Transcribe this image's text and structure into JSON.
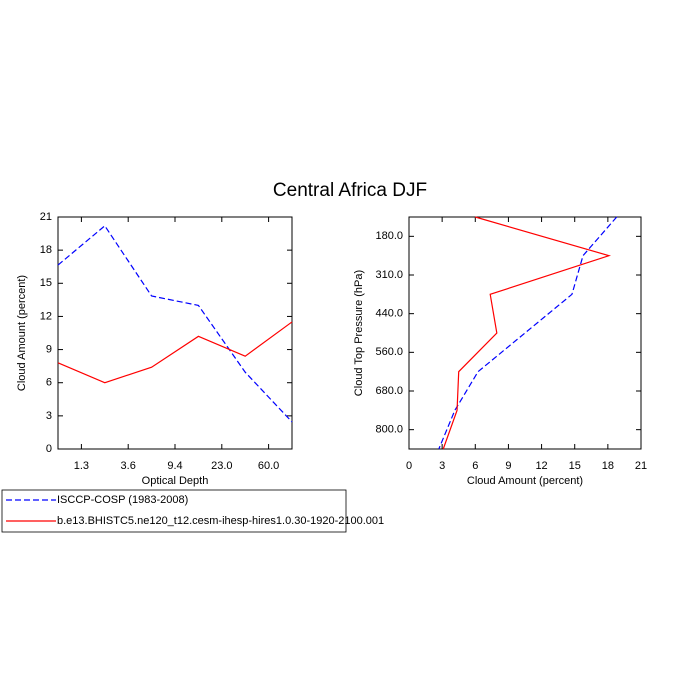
{
  "title": "Central Africa DJF",
  "chart_data": [
    {
      "type": "line",
      "orientation": "vertical",
      "x_label": "Optical Depth",
      "y_label": "Cloud Amount (percent)",
      "x": [
        0,
        1,
        2,
        3,
        4,
        5
      ],
      "xlim": [
        0,
        5
      ],
      "xticks": [
        {
          "value": 0.5,
          "label": "1.3"
        },
        {
          "value": 1.5,
          "label": "3.6"
        },
        {
          "value": 2.5,
          "label": "9.4"
        },
        {
          "value": 3.5,
          "label": "23.0"
        },
        {
          "value": 4.5,
          "label": "60.0"
        }
      ],
      "ylim": [
        0,
        21
      ],
      "yticks": [
        0,
        3,
        6,
        9,
        12,
        15,
        18,
        21
      ],
      "series": [
        {
          "name": "ISCCP-COSP (1983-2008)",
          "color": "#0000ff",
          "dash": true,
          "values": [
            16.65,
            20.2,
            13.85,
            13.0,
            6.95,
            2.45
          ]
        },
        {
          "name": "b.e13.BHISTC5.ne120_t12.cesm-ihesp-hires1.0.30-1920-2100.001",
          "color": "#ff0000",
          "dash": false,
          "values": [
            7.8,
            6.0,
            7.4,
            10.2,
            8.4,
            11.5
          ]
        }
      ]
    },
    {
      "type": "line",
      "orientation": "horizontal",
      "x_label": "Cloud Amount (percent)",
      "y_label": "Cloud Top Pressure (hPa)",
      "y": [
        0,
        1,
        2,
        3,
        4,
        5,
        6
      ],
      "ylim": [
        6,
        0
      ],
      "yticks": [
        {
          "value": 0.5,
          "label": "180.0"
        },
        {
          "value": 1.5,
          "label": "310.0"
        },
        {
          "value": 2.5,
          "label": "440.0"
        },
        {
          "value": 3.5,
          "label": "560.0"
        },
        {
          "value": 4.5,
          "label": "680.0"
        },
        {
          "value": 5.5,
          "label": "800.0"
        }
      ],
      "xlim": [
        0,
        21
      ],
      "xticks": [
        0,
        3,
        6,
        9,
        12,
        15,
        18,
        21
      ],
      "series": [
        {
          "color": "#0000ff",
          "dash": true,
          "values": [
            18.8,
            15.75,
            14.75,
            10.5,
            6.25,
            4.15,
            2.7
          ]
        },
        {
          "color": "#ff0000",
          "dash": false,
          "values": [
            6.0,
            18.1,
            7.35,
            7.95,
            4.5,
            4.35,
            3.1
          ]
        }
      ]
    }
  ]
}
